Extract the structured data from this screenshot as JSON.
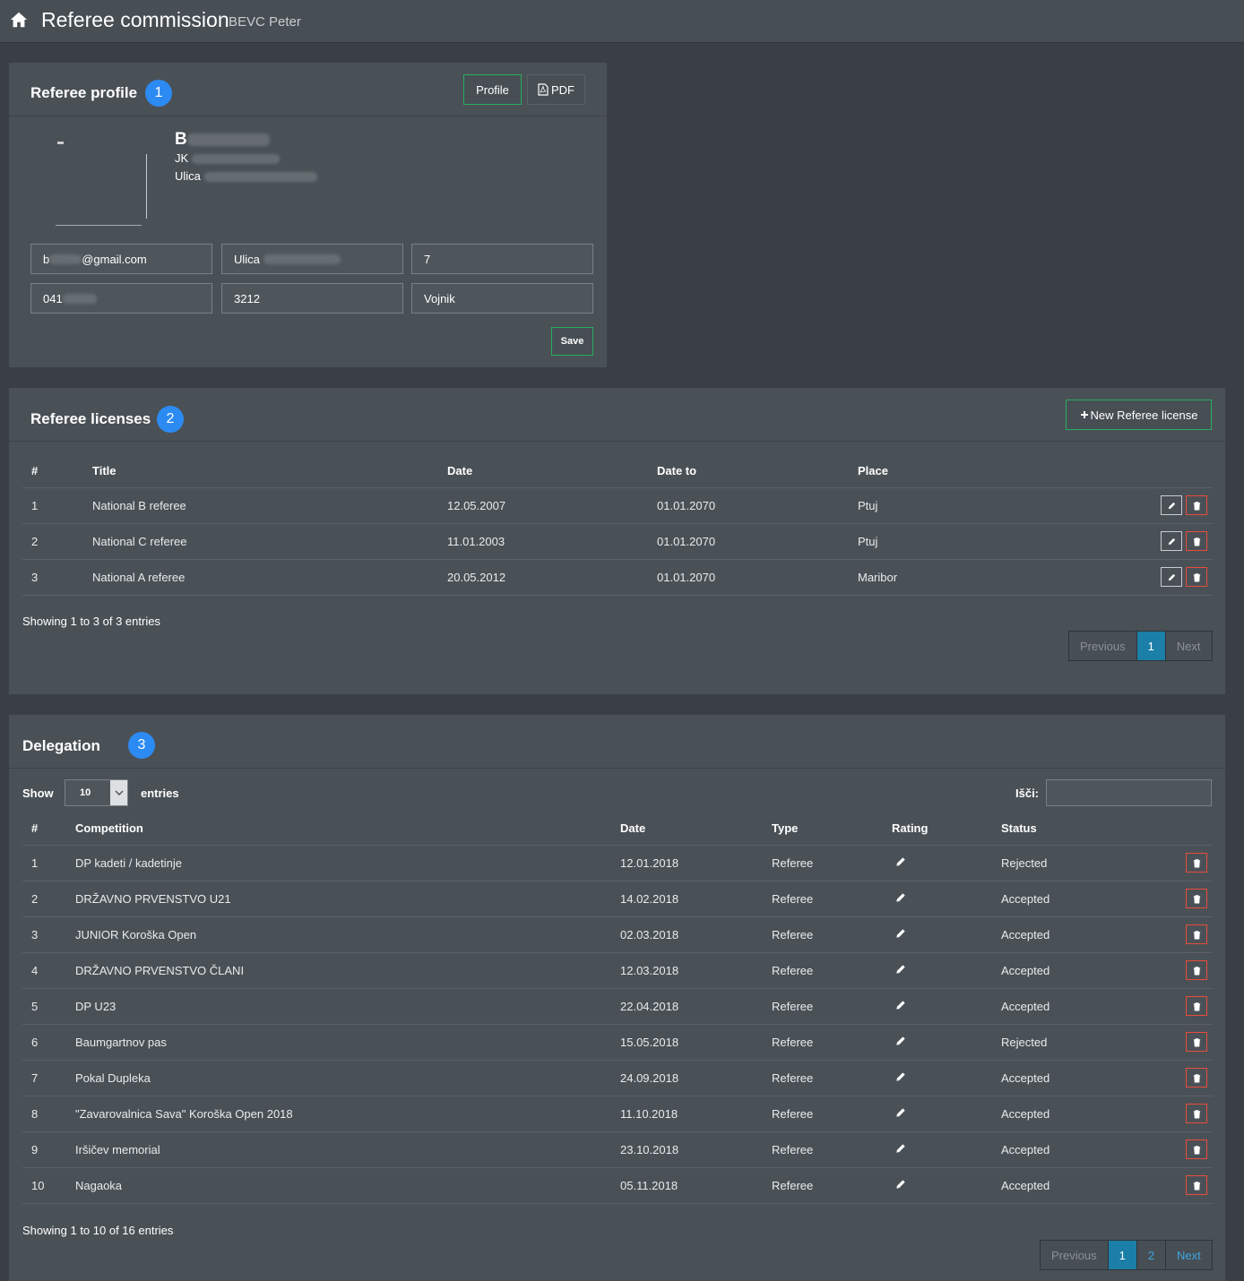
{
  "header": {
    "title": "Referee commission",
    "subtitle": "BEVC Peter"
  },
  "profile": {
    "title": "Referee profile",
    "badge": "1",
    "profile_button": "Profile",
    "pdf_button": "PDF",
    "name_initial": "B",
    "club_prefix": "JK",
    "street_prefix": "Ulica",
    "fields": {
      "email_prefix": "b",
      "email_suffix": "@gmail.com",
      "street_prefix": "Ulica",
      "house_number": "7",
      "phone_prefix": "041",
      "postal_code": "3212",
      "city": "Vojnik"
    },
    "save_button": "Save"
  },
  "licenses": {
    "title": "Referee licenses",
    "badge": "2",
    "new_button": "New Referee license",
    "columns": [
      "#",
      "Title",
      "Date",
      "Date to",
      "Place"
    ],
    "rows": [
      {
        "num": "1",
        "title": "National B referee",
        "date": "12.05.2007",
        "date_to": "01.01.2070",
        "place": "Ptuj"
      },
      {
        "num": "2",
        "title": "National C referee",
        "date": "11.01.2003",
        "date_to": "01.01.2070",
        "place": "Ptuj"
      },
      {
        "num": "3",
        "title": "National A referee",
        "date": "20.05.2012",
        "date_to": "01.01.2070",
        "place": "Maribor"
      }
    ],
    "info": "Showing 1 to 3 of 3 entries",
    "pager": {
      "previous": "Previous",
      "page1": "1",
      "next": "Next"
    }
  },
  "delegation": {
    "title": "Delegation",
    "badge": "3",
    "show_label": "Show",
    "show_value": "10",
    "entries_label": "entries",
    "search_label": "Išči:",
    "columns": [
      "#",
      "Competition",
      "Date",
      "Type",
      "Rating",
      "Status"
    ],
    "rows": [
      {
        "num": "1",
        "competition": "DP kadeti / kadetinje",
        "date": "12.01.2018",
        "type": "Referee",
        "status": "Rejected"
      },
      {
        "num": "2",
        "competition": "DRŽAVNO PRVENSTVO U21",
        "date": "14.02.2018",
        "type": "Referee",
        "status": "Accepted"
      },
      {
        "num": "3",
        "competition": "JUNIOR Koroška Open",
        "date": "02.03.2018",
        "type": "Referee",
        "status": "Accepted"
      },
      {
        "num": "4",
        "competition": "DRŽAVNO PRVENSTVO ČLANI",
        "date": "12.03.2018",
        "type": "Referee",
        "status": "Accepted"
      },
      {
        "num": "5",
        "competition": "DP U23",
        "date": "22.04.2018",
        "type": "Referee",
        "status": "Accepted"
      },
      {
        "num": "6",
        "competition": "Baumgartnov pas",
        "date": "15.05.2018",
        "type": "Referee",
        "status": "Rejected"
      },
      {
        "num": "7",
        "competition": "Pokal Dupleka",
        "date": "24.09.2018",
        "type": "Referee",
        "status": "Accepted"
      },
      {
        "num": "8",
        "competition": "\"Zavarovalnica Sava\" Koroška Open 2018",
        "date": "11.10.2018",
        "type": "Referee",
        "status": "Accepted"
      },
      {
        "num": "9",
        "competition": "Iršičev memorial",
        "date": "23.10.2018",
        "type": "Referee",
        "status": "Accepted"
      },
      {
        "num": "10",
        "competition": "Nagaoka",
        "date": "05.11.2018",
        "type": "Referee",
        "status": "Accepted"
      }
    ],
    "info": "Showing 1 to 10 of 16 entries",
    "pager": {
      "previous": "Previous",
      "page1": "1",
      "page2": "2",
      "next": "Next"
    }
  }
}
